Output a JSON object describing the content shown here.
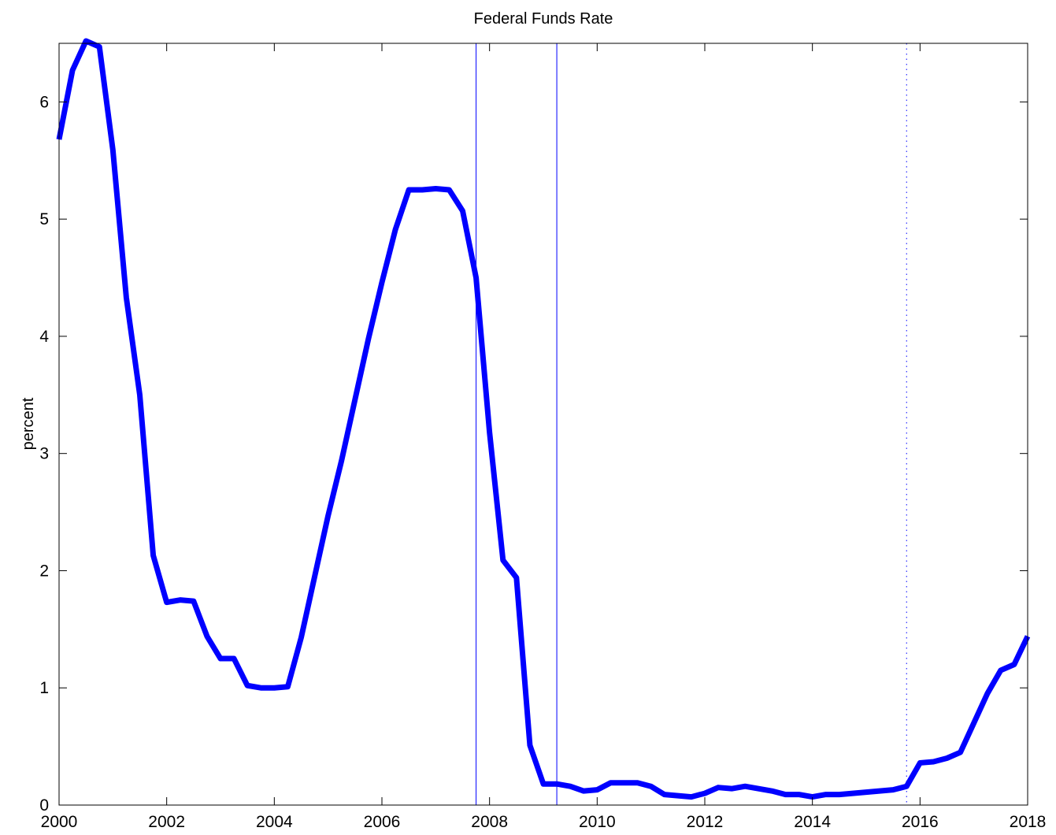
{
  "chart_data": {
    "type": "line",
    "title": "Federal Funds Rate",
    "xlabel": "",
    "ylabel": "percent",
    "xlim": [
      2000,
      2018
    ],
    "ylim": [
      0,
      6.5
    ],
    "x_ticks": [
      "2000",
      "2002",
      "2004",
      "2006",
      "2008",
      "2010",
      "2012",
      "2014",
      "2016",
      "2018"
    ],
    "y_ticks": [
      "0",
      "1",
      "2",
      "3",
      "4",
      "5",
      "6"
    ],
    "grid": false,
    "line_color": "#0000ff",
    "series": [
      {
        "x": [
          2000.0,
          2000.25,
          2000.5,
          2000.75,
          2001.0,
          2001.25,
          2001.5,
          2001.75,
          2002.0,
          2002.25,
          2002.5,
          2002.75,
          2003.0,
          2003.25,
          2003.5,
          2003.75,
          2004.0,
          2004.25,
          2004.5,
          2004.75,
          2005.0,
          2005.25,
          2005.5,
          2005.75,
          2006.0,
          2006.25,
          2006.5,
          2006.75,
          2007.0,
          2007.25,
          2007.5,
          2007.75,
          2008.0,
          2008.25,
          2008.5,
          2008.75,
          2009.0,
          2009.25,
          2009.5,
          2009.75,
          2010.0,
          2010.25,
          2010.5,
          2010.75,
          2011.0,
          2011.25,
          2011.5,
          2011.75,
          2012.0,
          2012.25,
          2012.5,
          2012.75,
          2013.0,
          2013.25,
          2013.5,
          2013.75,
          2014.0,
          2014.25,
          2014.5,
          2014.75,
          2015.0,
          2015.25,
          2015.5,
          2015.75,
          2016.0,
          2016.25,
          2016.5,
          2016.75,
          2017.0,
          2017.25,
          2017.5,
          2017.75,
          2018.0
        ],
        "values": [
          5.68,
          6.27,
          6.52,
          6.47,
          5.59,
          4.33,
          3.5,
          2.13,
          1.73,
          1.75,
          1.74,
          1.44,
          1.25,
          1.25,
          1.02,
          1.0,
          1.0,
          1.01,
          1.43,
          1.95,
          2.47,
          2.94,
          3.46,
          3.98,
          4.46,
          4.91,
          5.25,
          5.25,
          5.26,
          5.25,
          5.07,
          4.5,
          3.18,
          2.09,
          1.94,
          0.51,
          0.18,
          0.18,
          0.16,
          0.12,
          0.13,
          0.19,
          0.19,
          0.19,
          0.16,
          0.09,
          0.08,
          0.07,
          0.1,
          0.15,
          0.14,
          0.16,
          0.14,
          0.12,
          0.09,
          0.09,
          0.07,
          0.09,
          0.09,
          0.1,
          0.11,
          0.12,
          0.13,
          0.16,
          0.36,
          0.37,
          0.4,
          0.45,
          0.7,
          0.95,
          1.15,
          1.2,
          1.44
        ]
      }
    ],
    "vertical_lines": [
      {
        "x": 2007.75,
        "style": "solid"
      },
      {
        "x": 2009.25,
        "style": "solid"
      },
      {
        "x": 2015.75,
        "style": "dotted"
      }
    ]
  }
}
